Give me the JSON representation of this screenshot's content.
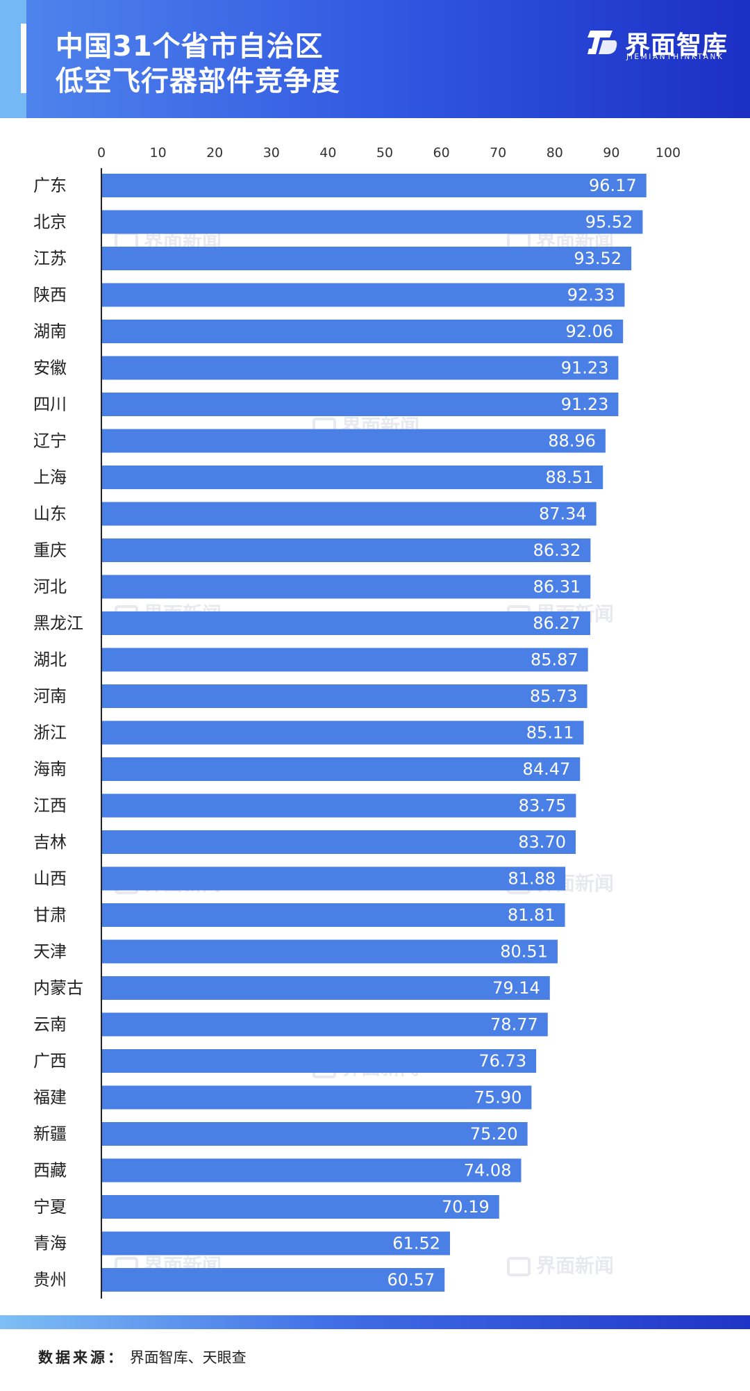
{
  "header": {
    "title_line1": "中国31个省市自治区",
    "title_line2": "低空飞行器部件竞争度",
    "brand_name": "界面智库",
    "brand_sub": "JIEMIANTHINKTANK",
    "logo_icon": "brand-logo-icon"
  },
  "watermark": {
    "text": "界面新闻"
  },
  "footer": {
    "source_label": "数据来源：",
    "source_text": "界面智库、天眼查"
  },
  "colors": {
    "bar": "#4a7fe6",
    "header_start": "#4f83ec",
    "header_end": "#1c2fc4"
  },
  "chart_data": {
    "type": "bar",
    "orientation": "horizontal",
    "xlim": [
      0,
      100
    ],
    "ticks": [
      0,
      10,
      20,
      30,
      40,
      50,
      60,
      70,
      80,
      90,
      100
    ],
    "categories": [
      "广东",
      "北京",
      "江苏",
      "陕西",
      "湖南",
      "安徽",
      "四川",
      "辽宁",
      "上海",
      "山东",
      "重庆",
      "河北",
      "黑龙江",
      "湖北",
      "河南",
      "浙江",
      "海南",
      "江西",
      "吉林",
      "山西",
      "甘肃",
      "天津",
      "内蒙古",
      "云南",
      "广西",
      "福建",
      "新疆",
      "西藏",
      "宁夏",
      "青海",
      "贵州"
    ],
    "values": [
      96.17,
      95.52,
      93.52,
      92.33,
      92.06,
      91.23,
      91.23,
      88.96,
      88.51,
      87.34,
      86.32,
      86.31,
      86.27,
      85.87,
      85.73,
      85.11,
      84.47,
      83.75,
      83.7,
      81.88,
      81.81,
      80.51,
      79.14,
      78.77,
      76.73,
      75.9,
      75.2,
      74.08,
      70.19,
      61.52,
      60.57
    ],
    "labels": [
      "96.17",
      "95.52",
      "93.52",
      "92.33",
      "92.06",
      "91.23",
      "91.23",
      "88.96",
      "88.51",
      "87.34",
      "86.32",
      "86.31",
      "86.27",
      "85.87",
      "85.73",
      "85.11",
      "84.47",
      "83.75",
      "83.70",
      "81.88",
      "81.81",
      "80.51",
      "79.14",
      "78.77",
      "76.73",
      "75.90",
      "75.20",
      "74.08",
      "70.19",
      "61.52",
      "60.57"
    ]
  }
}
